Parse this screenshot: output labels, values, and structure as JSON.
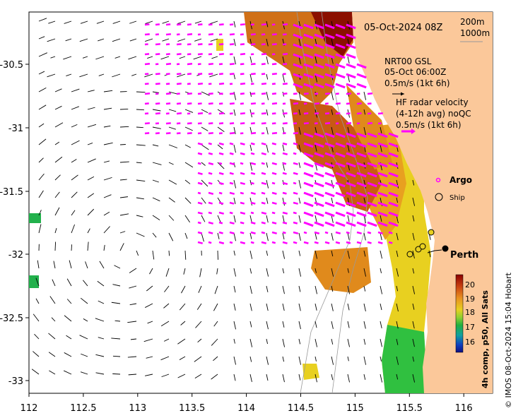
{
  "map": {
    "title": "05-Oct-2024 08Z",
    "depth_legend": [
      "200m",
      "1000m"
    ],
    "nrt_label_lines": [
      "NRT00 GSL",
      "05-Oct 06:00Z",
      "0.5m/s (1kt 6h)"
    ],
    "hf_label_lines": [
      "HF radar velocity",
      "(4-12h avg) noQC",
      "0.5m/s (1kt 6h)"
    ],
    "legend_argo": "Argo",
    "legend_ship": "Ship",
    "city_label": "Perth",
    "colorbar_label": "4h comp, p50, All Sats",
    "colorbar_ticks": [
      "20",
      "19",
      "18",
      "17",
      "16"
    ],
    "credit": "© IMOS 08-Oct-2024 15:04 Hobart",
    "x_ticks": [
      "112",
      "112.5",
      "113",
      "113.5",
      "114",
      "114.5",
      "115",
      "115.5",
      "116"
    ],
    "y_ticks": [
      "-30.5",
      "-31",
      "-31.5",
      "-32",
      "-32.5",
      "-33"
    ],
    "colors": {
      "land": "#fbc89a",
      "hf_arrow": "#ff00ff",
      "model_arrow": "#000000",
      "sst_warm": "#8b0000",
      "sst_mid": "#e8a020",
      "sst_cool": "#22b14c"
    }
  }
}
